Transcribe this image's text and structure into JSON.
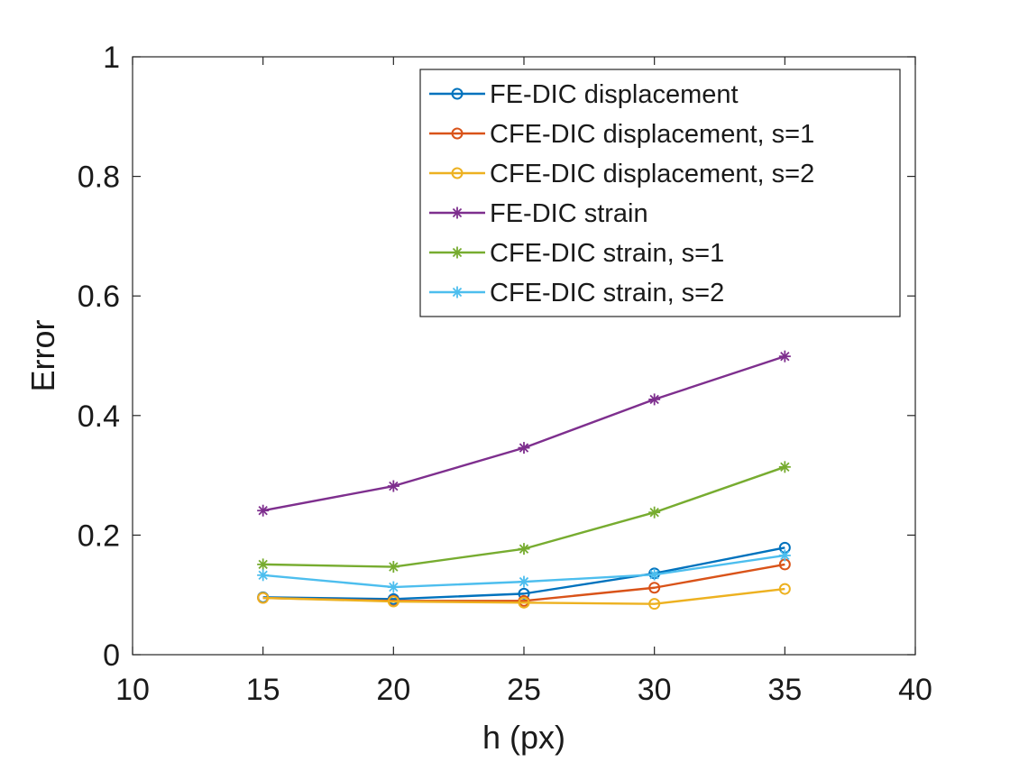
{
  "chart_data": {
    "type": "line",
    "title": "",
    "xlabel": "h (px)",
    "ylabel": "Error",
    "xlim": [
      10,
      40
    ],
    "ylim": [
      0,
      1
    ],
    "xticks": [
      10,
      15,
      20,
      25,
      30,
      35,
      40
    ],
    "yticks": [
      0,
      0.2,
      0.4,
      0.6,
      0.8,
      1
    ],
    "xtick_labels": [
      "10",
      "15",
      "20",
      "25",
      "30",
      "35",
      "40"
    ],
    "ytick_labels": [
      "0",
      "0.2",
      "0.4",
      "0.6",
      "0.8",
      "1"
    ],
    "grid": false,
    "legend_position": "top-right",
    "x": [
      15,
      20,
      25,
      30,
      35
    ],
    "series": [
      {
        "name": "FE-DIC displacement",
        "color": "#0072BD",
        "marker": "circle",
        "values": [
          0.096,
          0.093,
          0.102,
          0.136,
          0.179
        ]
      },
      {
        "name": "CFE-DIC displacement, s=1",
        "color": "#D95319",
        "marker": "circle",
        "values": [
          0.095,
          0.09,
          0.09,
          0.112,
          0.151
        ]
      },
      {
        "name": "CFE-DIC displacement, s=2",
        "color": "#EDB120",
        "marker": "circle",
        "values": [
          0.095,
          0.089,
          0.087,
          0.085,
          0.11
        ]
      },
      {
        "name": "FE-DIC strain",
        "color": "#7E2F8E",
        "marker": "asterisk",
        "values": [
          0.241,
          0.282,
          0.346,
          0.427,
          0.499
        ]
      },
      {
        "name": "CFE-DIC strain, s=1",
        "color": "#77AC30",
        "marker": "asterisk",
        "values": [
          0.151,
          0.147,
          0.177,
          0.238,
          0.314
        ]
      },
      {
        "name": "CFE-DIC strain, s=2",
        "color": "#4DBEEE",
        "marker": "asterisk",
        "values": [
          0.133,
          0.113,
          0.122,
          0.134,
          0.166
        ]
      }
    ]
  }
}
